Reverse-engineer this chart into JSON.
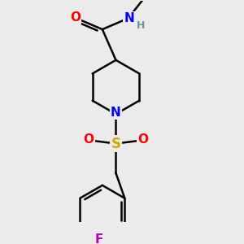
{
  "bg_color": "#ebebeb",
  "bond_color": "#000000",
  "bond_lw": 1.8,
  "atom_colors": {
    "O": "#ff0000",
    "N_amide": "#0000ff",
    "N_pip": "#0000ff",
    "S": "#ccaa00",
    "F": "#bb00bb",
    "H": "#669999",
    "C": "#000000"
  },
  "font_size_atoms": 11,
  "font_size_H": 9
}
